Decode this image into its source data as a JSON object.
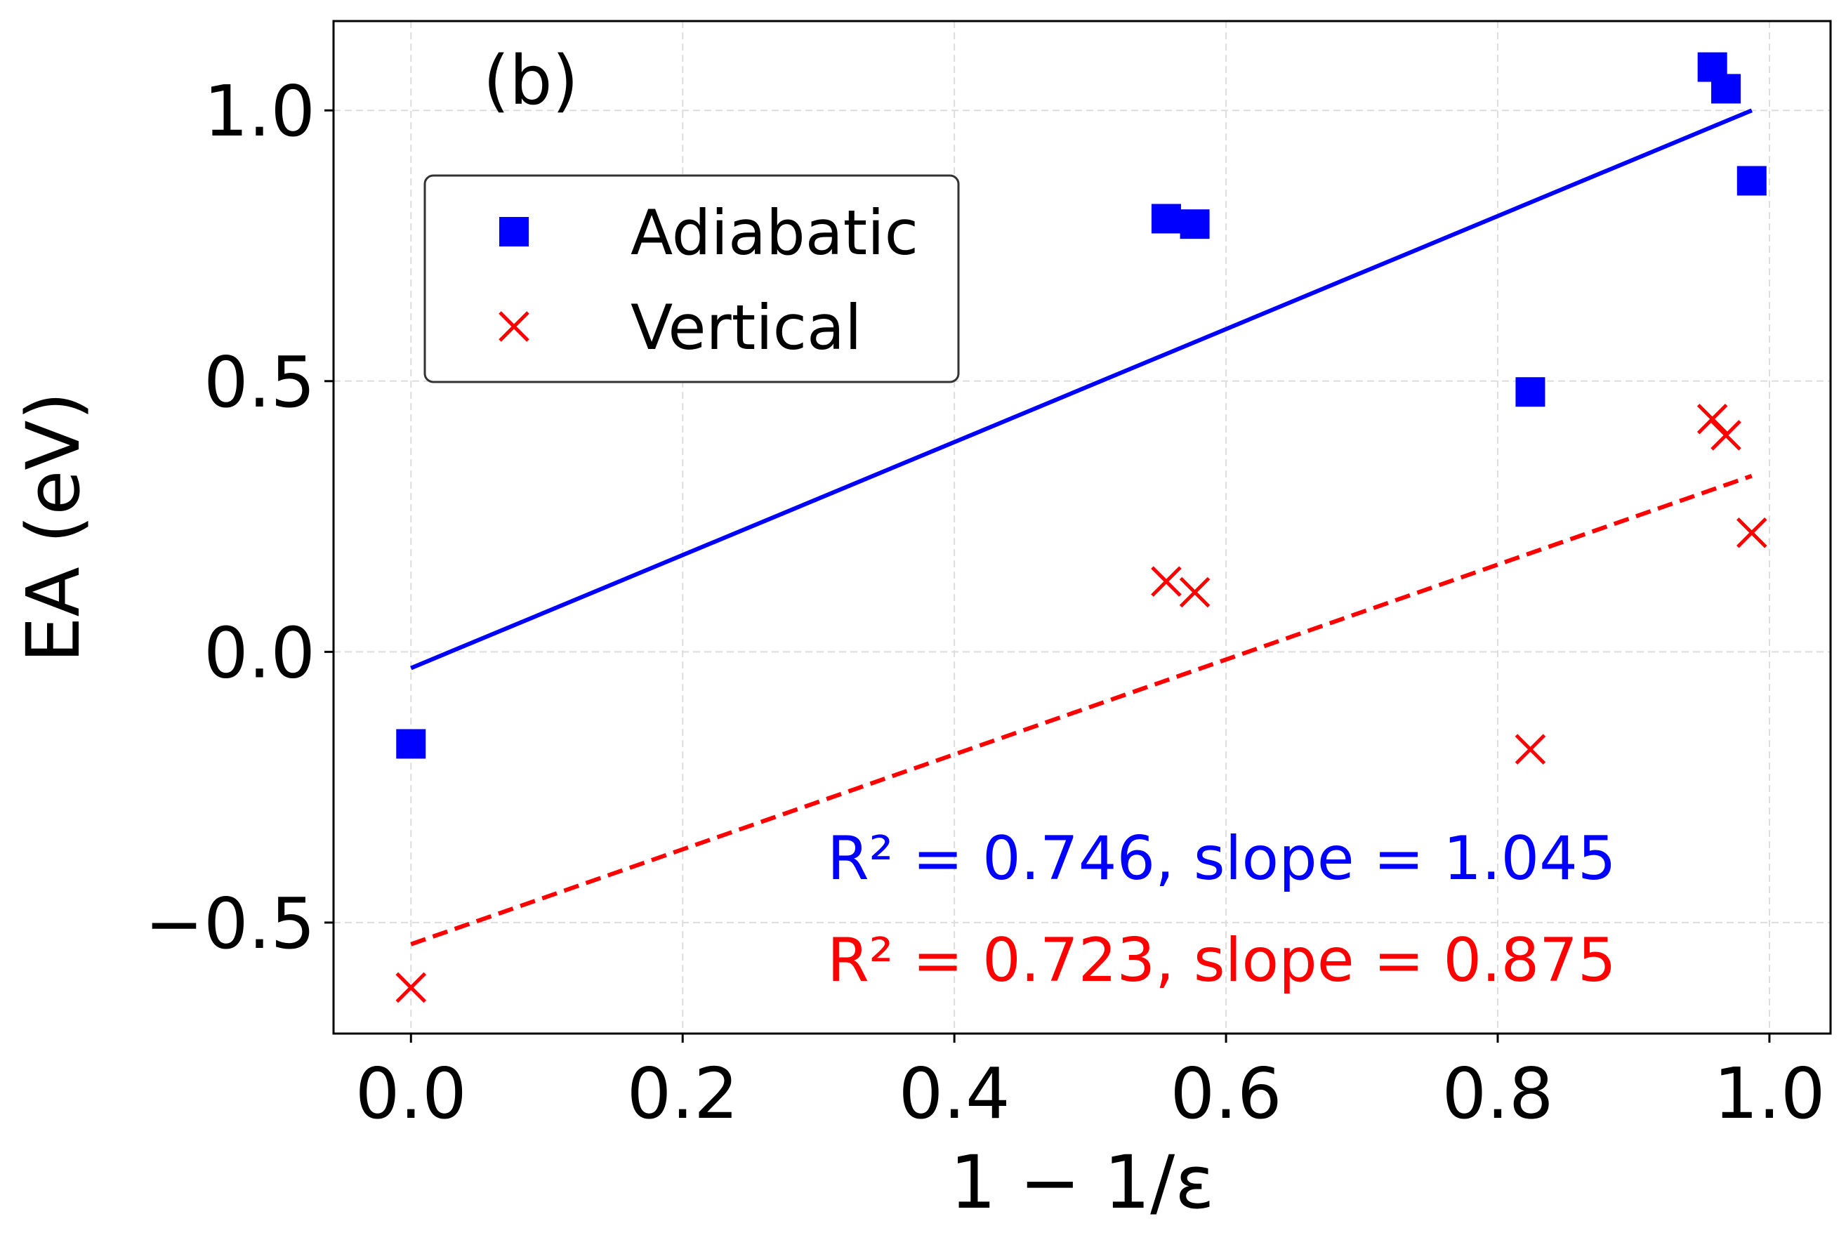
{
  "chart_data": {
    "type": "scatter",
    "panel_label": "(b)",
    "xlabel": "1 − 1/ε",
    "ylabel": "EA (eV)",
    "xlim": [
      -0.057,
      1.045
    ],
    "ylim": [
      -0.705,
      1.165
    ],
    "xticks": [
      0.0,
      0.2,
      0.4,
      0.6,
      0.8,
      1.0
    ],
    "xtick_labels": [
      "0.0",
      "0.2",
      "0.4",
      "0.6",
      "0.8",
      "1.0"
    ],
    "yticks": [
      -0.5,
      0.0,
      0.5,
      1.0
    ],
    "ytick_labels": [
      "−0.5",
      "0.0",
      "0.5",
      "1.0"
    ],
    "grid": true,
    "legend_position": "upper-left",
    "series": [
      {
        "name": "Adiabatic",
        "color": "#0000ff",
        "marker": "square",
        "x": [
          0.0,
          0.556,
          0.577,
          0.824,
          0.958,
          0.968,
          0.987
        ],
        "y": [
          -0.17,
          0.8,
          0.79,
          0.48,
          1.08,
          1.04,
          0.87
        ],
        "fit": {
          "type": "linear",
          "style": "solid",
          "x": [
            0.0,
            0.987
          ],
          "y": [
            -0.03,
            1.0
          ]
        },
        "annotation": "R² = 0.746, slope = 1.045"
      },
      {
        "name": "Vertical",
        "color": "#ff0000",
        "marker": "x",
        "x": [
          0.0,
          0.556,
          0.577,
          0.824,
          0.958,
          0.968,
          0.987
        ],
        "y": [
          -0.62,
          0.13,
          0.11,
          -0.18,
          0.43,
          0.4,
          0.22
        ],
        "fit": {
          "type": "linear",
          "style": "dashed",
          "x": [
            0.0,
            0.987
          ],
          "y": [
            -0.54,
            0.325
          ]
        },
        "annotation": "R² = 0.723, slope = 0.875"
      }
    ]
  }
}
